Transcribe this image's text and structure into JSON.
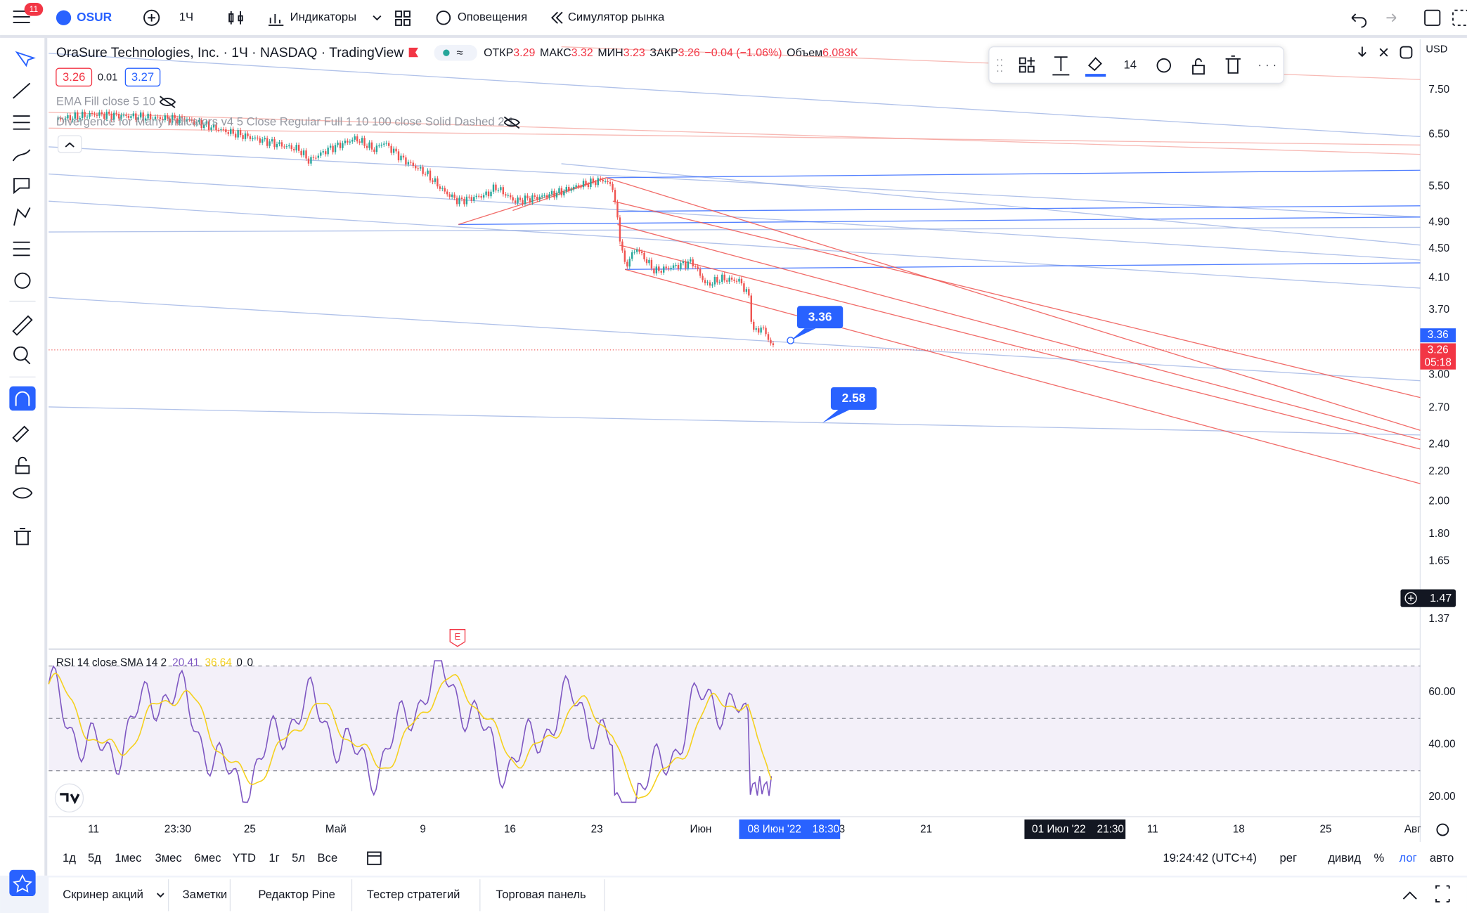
{
  "toolbar": {
    "notifications": "11",
    "symbol": "OSUR",
    "interval": "1Ч",
    "indicators": "Индикаторы",
    "alerts": "Оповещения",
    "replay": "Симулятор рынка"
  },
  "legend": {
    "title": "OraSure Technologies, Inc. · 1Ч · NASDAQ · TradingView",
    "ohlc": {
      "open_label": "ОТКР",
      "open": "3.29",
      "high_label": "МАКС",
      "high": "3.32",
      "low_label": "МИН",
      "low": "3.23",
      "close_label": "ЗАКР",
      "close": "3.26",
      "change": "−0.04 (−1.06%)",
      "volume_label": "Объем",
      "volume": "6.083K"
    },
    "bid": "3.26",
    "spread": "0.01",
    "ask": "3.27",
    "ema": "EMA Fill close 5 10",
    "divergence": "Divergence for Many Indicators v4 5 Close Regular Full 1 10 100 close Solid Dashed 2 1"
  },
  "drawing_toolbar": {
    "font_size": "14"
  },
  "price_axis": {
    "currency": "USD",
    "labels": [
      "7.50",
      "6.50",
      "5.50",
      "4.90",
      "4.50",
      "4.10",
      "3.70",
      "3.00",
      "2.70",
      "2.40",
      "2.20",
      "2.00",
      "1.80",
      "1.65",
      "1.37"
    ],
    "crosshair": "3.36",
    "last_price": "3.26",
    "countdown": "05:18",
    "cursor_price": "1.47"
  },
  "callouts": [
    "3.36",
    "2.58"
  ],
  "earnings": "E",
  "rsi": {
    "name": "RSI 14 close SMA 14 2",
    "rsi": "20.41",
    "sma": "36.64",
    "extra": [
      "0",
      "0"
    ],
    "labels": [
      "60.00",
      "40.00",
      "20.00"
    ]
  },
  "time_axis": {
    "labels": [
      "11",
      "23:30",
      "25",
      "Май",
      "9",
      "16",
      "23",
      "Июн",
      "3",
      "21",
      "11",
      "18",
      "25",
      "Авг"
    ],
    "cursor": {
      "date": "08 Июн '22",
      "time": "18:30"
    },
    "marker": {
      "date": "01 Июл '22",
      "time": "21:30"
    }
  },
  "ranges": [
    "1д",
    "5д",
    "1мес",
    "3мес",
    "6мес",
    "YTD",
    "1г",
    "5л",
    "Все"
  ],
  "status": {
    "clock": "19:24:42 (UTC+4)",
    "options": [
      "рег",
      "дивид",
      "%",
      "лог",
      "авто"
    ]
  },
  "bottom_tabs": [
    "Скринер акций",
    "Заметки",
    "Редактор Pine",
    "Тестер стратегий",
    "Торговая панель"
  ]
}
